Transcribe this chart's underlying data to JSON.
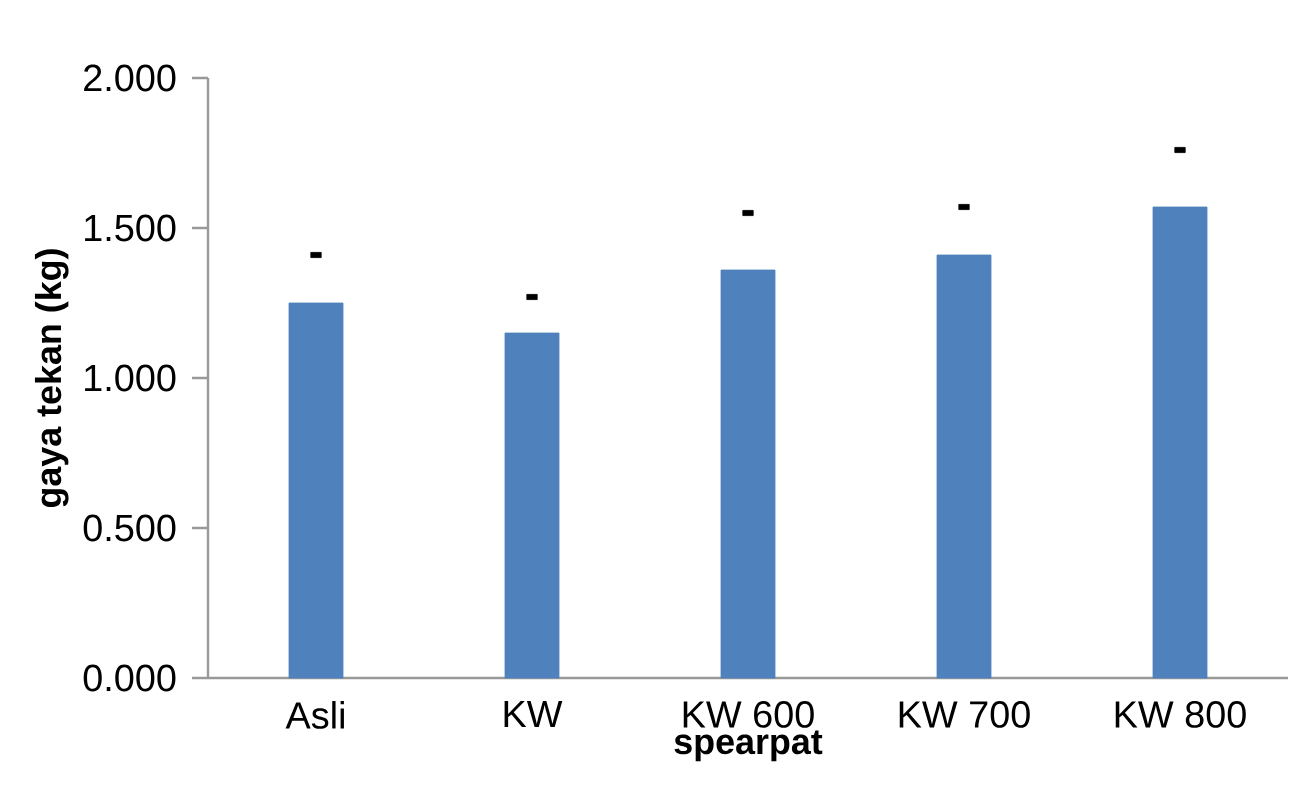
{
  "chart_data": {
    "type": "bar",
    "xlabel": "spearpat",
    "ylabel": "gaya tekan (kg)",
    "categories": [
      "Asli",
      "KW",
      "KW 600",
      "KW 700",
      "KW 800"
    ],
    "series": [
      {
        "color": "#4f81bd",
        "values": [
          1.25,
          1.15,
          1.36,
          1.41,
          1.57
        ]
      },
      {
        "type": "scatter",
        "color": "#000000",
        "values": [
          1.41,
          1.27,
          1.55,
          1.57,
          1.76
        ]
      }
    ],
    "ylim": [
      0,
      2
    ],
    "yticks": [
      {
        "value": 0,
        "label": "0.000"
      },
      {
        "value": 0.5,
        "label": "0.500"
      },
      {
        "value": 1,
        "label": "1.000"
      },
      {
        "value": 1.5,
        "label": "1.500"
      },
      {
        "value": 2,
        "label": "2.000"
      }
    ],
    "marker": "square",
    "grid": false
  }
}
